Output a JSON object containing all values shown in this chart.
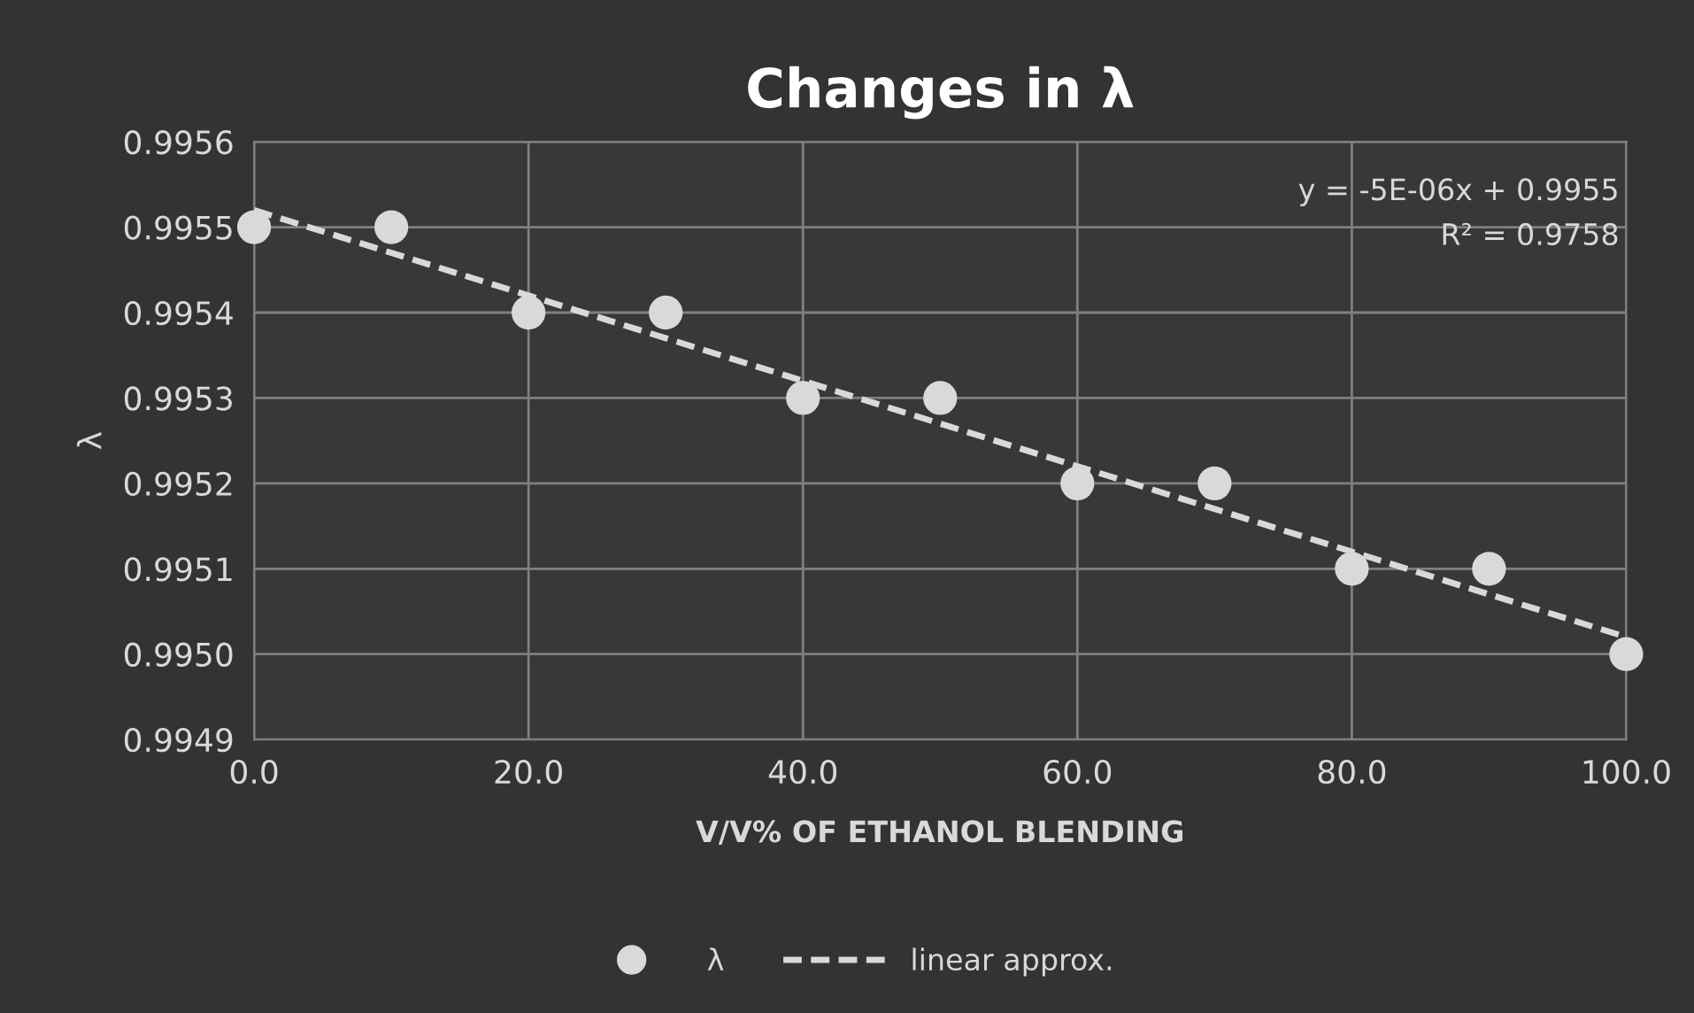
{
  "chart_data": {
    "type": "scatter",
    "title": "Changes in λ",
    "xlabel": "V/V% OF ETHANOL BLENDING",
    "ylabel": "λ",
    "xlim": [
      0,
      100
    ],
    "xticks": [
      {
        "value": 0,
        "label": "0.0"
      },
      {
        "value": 20,
        "label": "20.0"
      },
      {
        "value": 40,
        "label": "40.0"
      },
      {
        "value": 60,
        "label": "60.0"
      },
      {
        "value": 80,
        "label": "80.0"
      },
      {
        "value": 100,
        "label": "100.0"
      }
    ],
    "ylim": [
      0.9949,
      0.9956
    ],
    "yticks": [
      {
        "value": 0.9949,
        "label": "0.9949"
      },
      {
        "value": 0.995,
        "label": "0.9950"
      },
      {
        "value": 0.9951,
        "label": "0.9951"
      },
      {
        "value": 0.9952,
        "label": "0.9952"
      },
      {
        "value": 0.9953,
        "label": "0.9953"
      },
      {
        "value": 0.9954,
        "label": "0.9954"
      },
      {
        "value": 0.9955,
        "label": "0.9955"
      },
      {
        "value": 0.9956,
        "label": "0.9956"
      }
    ],
    "grid": true,
    "legend": "bottom",
    "annotations": [
      "y = -5E-06x + 0.9955",
      "R² = 0.9758"
    ],
    "series": [
      {
        "name": "λ",
        "marker": "circle",
        "color": "#d9d9d9",
        "x": [
          0,
          10,
          20,
          30,
          40,
          50,
          60,
          70,
          80,
          90,
          100
        ],
        "values": [
          0.9955,
          0.9955,
          0.9954,
          0.9954,
          0.9953,
          0.9953,
          0.9952,
          0.9952,
          0.9951,
          0.9951,
          0.995
        ]
      },
      {
        "name": "linear approx.",
        "type": "line",
        "line_style": "dashed",
        "marker": "none",
        "color": "#d9d9d9",
        "x": [
          0,
          100
        ],
        "values": [
          0.99552,
          0.99502
        ]
      }
    ]
  }
}
